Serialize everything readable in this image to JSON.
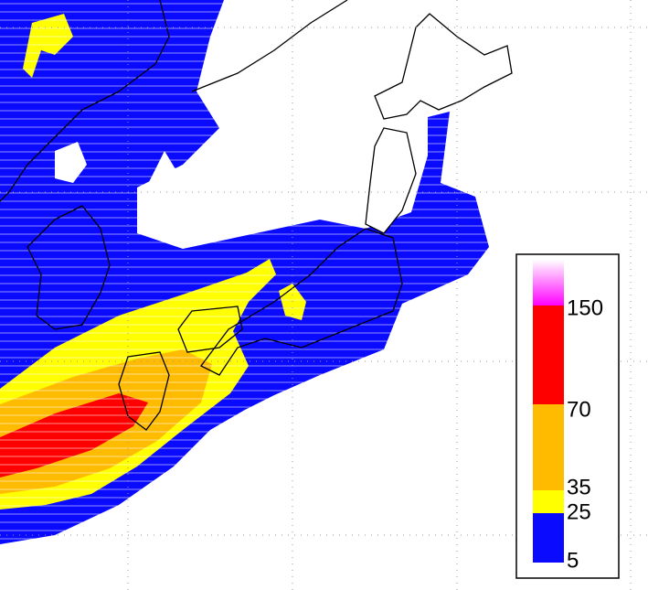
{
  "legend": {
    "levels": [
      5,
      25,
      35,
      70,
      150
    ],
    "colors": [
      "#0a0aff",
      "#ffff00",
      "#ffbb00",
      "#ff0000"
    ],
    "top_color": "#ff00ff"
  }
}
